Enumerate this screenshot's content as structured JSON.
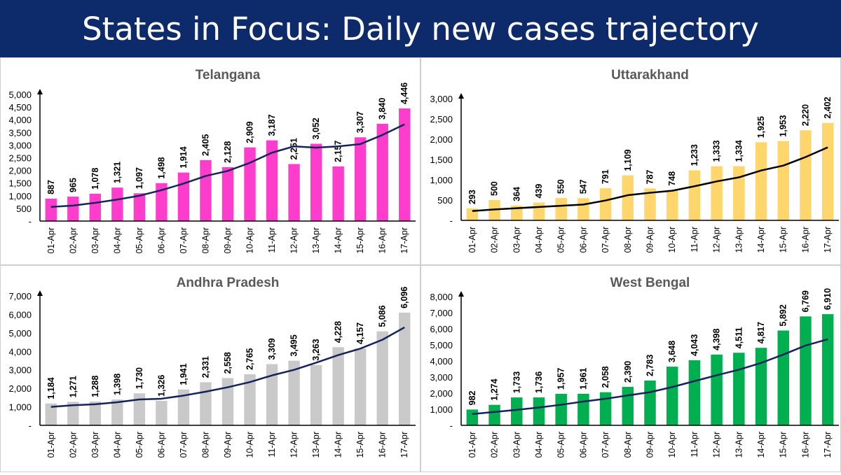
{
  "page": {
    "title": "States in Focus: Daily new cases trajectory"
  },
  "chart_data": [
    {
      "type": "bar",
      "title": "Telangana",
      "color": "#ff3dcc",
      "line_color": "#15235a",
      "categories": [
        "01-Apr",
        "02-Apr",
        "03-Apr",
        "04-Apr",
        "05-Apr",
        "06-Apr",
        "07-Apr",
        "08-Apr",
        "09-Apr",
        "10-Apr",
        "11-Apr",
        "12-Apr",
        "13-Apr",
        "14-Apr",
        "15-Apr",
        "16-Apr",
        "17-Apr"
      ],
      "values": [
        887,
        965,
        1078,
        1321,
        1097,
        1498,
        1914,
        2405,
        2128,
        2909,
        3187,
        2251,
        3052,
        2157,
        3307,
        3840,
        4446
      ],
      "value_labels": [
        "887",
        "965",
        "1,078",
        "1,321",
        "1,097",
        "1,498",
        "1,914",
        "2,405",
        "2,128",
        "2,909",
        "3,187",
        "2,251",
        "3,052",
        "2,157",
        "3,307",
        "3,840",
        "4,446"
      ],
      "trend": [
        560,
        610,
        720,
        850,
        1000,
        1220,
        1480,
        1780,
        1980,
        2300,
        2700,
        2950,
        2900,
        2950,
        3040,
        3400,
        3820
      ],
      "ylim": [
        0,
        5000
      ],
      "yticks": [
        0,
        500,
        1000,
        1500,
        2000,
        2500,
        3000,
        3500,
        4000,
        4500,
        5000
      ],
      "ytick_labels": [
        "-",
        "500",
        "1,000",
        "1,500",
        "2,000",
        "2,500",
        "3,000",
        "3,500",
        "4,000",
        "4,500",
        "5,000"
      ]
    },
    {
      "type": "bar",
      "title": "Uttarakhand",
      "color": "#ffd66b",
      "line_color": "#000000",
      "categories": [
        "01-Apr",
        "02-Apr",
        "03-Apr",
        "04-Apr",
        "05-Apr",
        "06-Apr",
        "07-Apr",
        "08-Apr",
        "09-Apr",
        "10-Apr",
        "11-Apr",
        "12-Apr",
        "13-Apr",
        "14-Apr",
        "15-Apr",
        "16-Apr",
        "17-Apr"
      ],
      "values": [
        293,
        500,
        364,
        439,
        550,
        547,
        791,
        1109,
        787,
        748,
        1233,
        1333,
        1334,
        1925,
        1953,
        2220,
        2402
      ],
      "value_labels": [
        "293",
        "500",
        "364",
        "439",
        "550",
        "547",
        "791",
        "1,109",
        "787",
        "748",
        "1,233",
        "1,333",
        "1,334",
        "1,925",
        "1,953",
        "2,220",
        "2,402"
      ],
      "trend": [
        230,
        270,
        300,
        330,
        360,
        390,
        490,
        620,
        680,
        730,
        840,
        960,
        1060,
        1230,
        1350,
        1560,
        1800
      ],
      "ylim": [
        0,
        3000
      ],
      "yticks": [
        0,
        500,
        1000,
        1500,
        2000,
        2500,
        3000
      ],
      "ytick_labels": [
        "-",
        "500",
        "1,000",
        "1,500",
        "2,000",
        "2,500",
        "3,000"
      ]
    },
    {
      "type": "bar",
      "title": "Andhra Pradesh",
      "color": "#c9c9c9",
      "line_color": "#15235a",
      "categories": [
        "01-Apr",
        "02-Apr",
        "03-Apr",
        "04-Apr",
        "05-Apr",
        "06-Apr",
        "07-Apr",
        "08-Apr",
        "09-Apr",
        "10-Apr",
        "11-Apr",
        "12-Apr",
        "13-Apr",
        "14-Apr",
        "15-Apr",
        "16-Apr",
        "17-Apr"
      ],
      "values": [
        1184,
        1271,
        1288,
        1398,
        1730,
        1326,
        1941,
        2331,
        2558,
        2765,
        3309,
        3495,
        3263,
        4228,
        4157,
        5086,
        6096
      ],
      "value_labels": [
        "1,184",
        "1,271",
        "1,288",
        "1,398",
        "1,730",
        "1,326",
        "1,941",
        "2,331",
        "2,558",
        "2,765",
        "3,309",
        "3,495",
        "3,263",
        "4,228",
        "4,157",
        "5,086",
        "6,096"
      ],
      "trend": [
        1000,
        1090,
        1140,
        1250,
        1400,
        1440,
        1610,
        1820,
        2060,
        2340,
        2700,
        3000,
        3390,
        3800,
        4150,
        4630,
        5300
      ],
      "ylim": [
        0,
        7000
      ],
      "yticks": [
        0,
        1000,
        2000,
        3000,
        4000,
        5000,
        6000,
        7000
      ],
      "ytick_labels": [
        "-",
        "1,000",
        "2,000",
        "3,000",
        "4,000",
        "5,000",
        "6,000",
        "7,000"
      ]
    },
    {
      "type": "bar",
      "title": "West Bengal",
      "color": "#00b050",
      "line_color": "#15235a",
      "categories": [
        "01-Apr",
        "02-Apr",
        "03-Apr",
        "04-Apr",
        "05-Apr",
        "06-Apr",
        "07-Apr",
        "08-Apr",
        "09-Apr",
        "10-Apr",
        "11-Apr",
        "12-Apr",
        "13-Apr",
        "14-Apr",
        "15-Apr",
        "16-Apr",
        "17-Apr"
      ],
      "values": [
        982,
        1274,
        1733,
        1736,
        1957,
        1961,
        2058,
        2390,
        2783,
        3648,
        4043,
        4398,
        4511,
        4817,
        5892,
        6769,
        6910
      ],
      "value_labels": [
        "982",
        "1,274",
        "1,733",
        "1,736",
        "1,957",
        "1,961",
        "2,058",
        "2,390",
        "2,783",
        "3,648",
        "4,043",
        "4,398",
        "4,511",
        "4,817",
        "5,892",
        "6,769",
        "6,910"
      ],
      "trend": [
        700,
        830,
        960,
        1110,
        1280,
        1480,
        1650,
        1860,
        2060,
        2380,
        2750,
        3110,
        3460,
        3880,
        4400,
        4960,
        5350
      ],
      "ylim": [
        0,
        8000
      ],
      "yticks": [
        0,
        1000,
        2000,
        3000,
        4000,
        5000,
        6000,
        7000,
        8000
      ],
      "ytick_labels": [
        "-",
        "1,000",
        "2,000",
        "3,000",
        "4,000",
        "5,000",
        "6,000",
        "7,000",
        "8,000"
      ]
    }
  ]
}
